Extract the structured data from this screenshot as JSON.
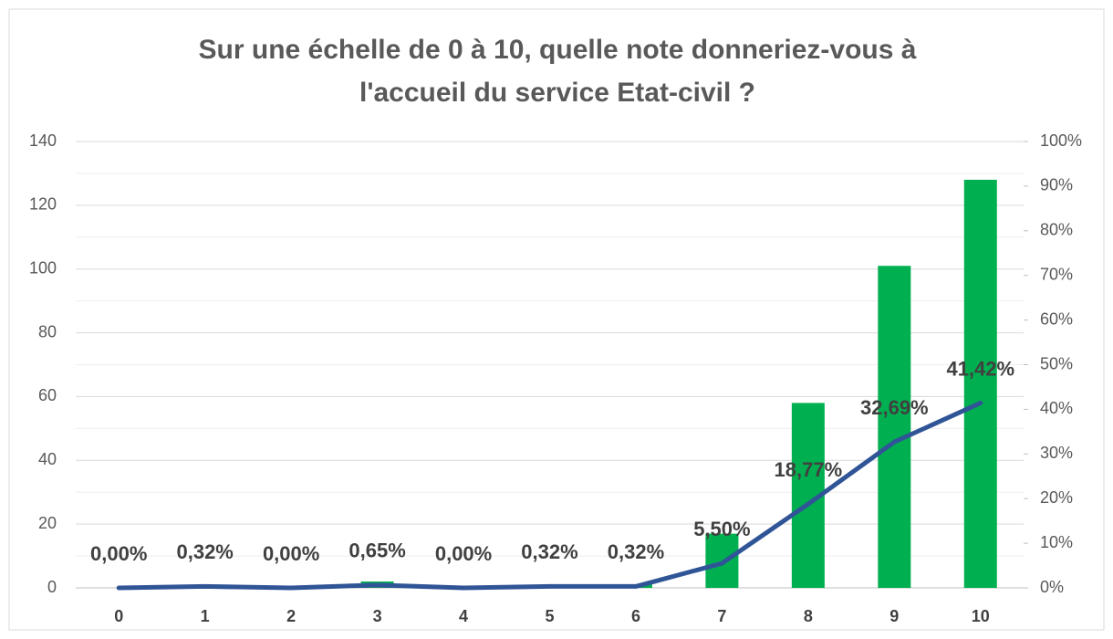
{
  "chart_data": {
    "type": "bar_line",
    "title": [
      "Sur une échelle de 0 à 10, quelle note donneriez-vous à",
      "l'accueil du service Etat-civil ?"
    ],
    "categories": [
      "0",
      "1",
      "2",
      "3",
      "4",
      "5",
      "6",
      "7",
      "8",
      "9",
      "10"
    ],
    "series": [
      {
        "type": "bar",
        "color": "#00b050",
        "values": [
          0,
          1,
          0,
          2,
          0,
          1,
          1,
          17,
          58,
          101,
          128
        ]
      },
      {
        "type": "line",
        "axis": "y2",
        "color": "#2f5597",
        "values": [
          0,
          0.32,
          0,
          0.65,
          0,
          0.32,
          0.32,
          5.5,
          18.77,
          32.69,
          41.42
        ],
        "value_labels": [
          "0,00%",
          "0,32%",
          "0,00%",
          "0,65%",
          "0,00%",
          "0,32%",
          "0,32%",
          "5,50%",
          "18,77%",
          "32,69%",
          "41,42%"
        ]
      }
    ],
    "ylim": [
      0,
      140
    ],
    "yticks": [
      0,
      20,
      40,
      60,
      80,
      100,
      120,
      140
    ],
    "yminorticks": [
      10,
      30,
      50,
      70,
      90,
      110,
      130
    ],
    "y2lim": [
      0,
      100
    ],
    "y2ticks": [
      {
        "value": 0,
        "label": "0%"
      },
      {
        "value": 10,
        "label": "10%"
      },
      {
        "value": 20,
        "label": "20%"
      },
      {
        "value": 30,
        "label": "30%"
      },
      {
        "value": 40,
        "label": "40%"
      },
      {
        "value": 50,
        "label": "50%"
      },
      {
        "value": 60,
        "label": "60%"
      },
      {
        "value": 70,
        "label": "70%"
      },
      {
        "value": 80,
        "label": "80%"
      },
      {
        "value": 90,
        "label": "90%"
      },
      {
        "value": 100,
        "label": "100%"
      }
    ],
    "grid": true
  }
}
